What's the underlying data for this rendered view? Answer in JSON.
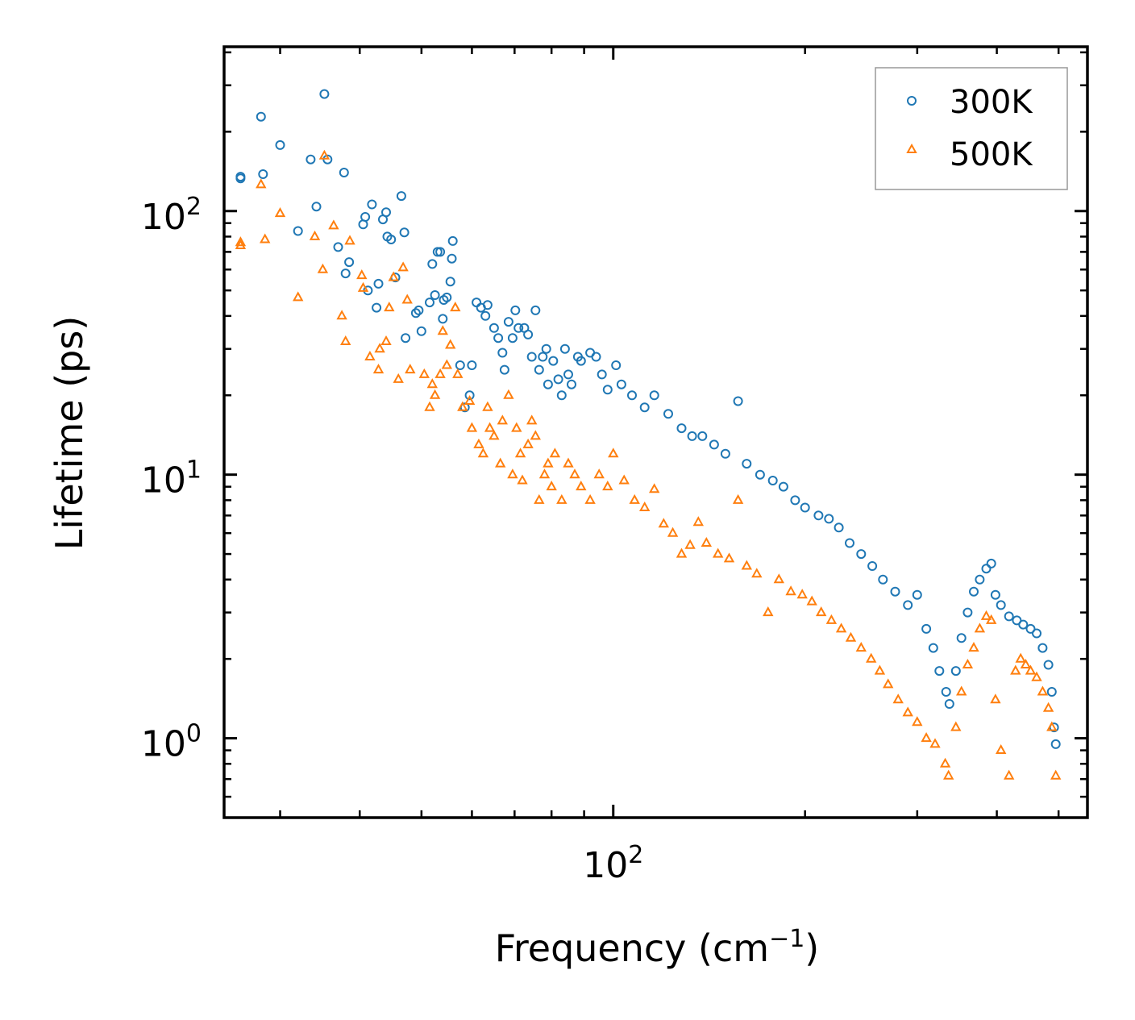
{
  "chart_data": {
    "type": "scatter",
    "xscale": "log",
    "yscale": "log",
    "xlabel": "Frequency (cm",
    "xlabel_sup": "−1",
    "xlabel_end": ")",
    "ylabel": "Lifetime (ps)",
    "xlim": [
      24.5,
      555
    ],
    "ylim": [
      0.5,
      420
    ],
    "xticks": [
      {
        "base": "10",
        "exp": "2",
        "value": 100
      }
    ],
    "yticks": [
      {
        "base": "10",
        "exp": "0",
        "value": 1
      },
      {
        "base": "10",
        "exp": "1",
        "value": 10
      },
      {
        "base": "10",
        "exp": "2",
        "value": 100
      }
    ],
    "legend": {
      "position": "upper-right"
    },
    "series": [
      {
        "name": "300K",
        "marker": "circle",
        "color": "#1f77b4",
        "points": [
          [
            26,
            133
          ],
          [
            26,
            135
          ],
          [
            28,
            228
          ],
          [
            28.2,
            138
          ],
          [
            30,
            178
          ],
          [
            32,
            84
          ],
          [
            33.5,
            157
          ],
          [
            34.2,
            104
          ],
          [
            35.2,
            278
          ],
          [
            35.6,
            157
          ],
          [
            37,
            73
          ],
          [
            37.8,
            140
          ],
          [
            38,
            58
          ],
          [
            38.5,
            64
          ],
          [
            40.5,
            89
          ],
          [
            40.8,
            95
          ],
          [
            41.2,
            50
          ],
          [
            41.8,
            106
          ],
          [
            42.5,
            43
          ],
          [
            42.8,
            53
          ],
          [
            43.5,
            93
          ],
          [
            44,
            99
          ],
          [
            44.2,
            80
          ],
          [
            44.8,
            78
          ],
          [
            45.5,
            56
          ],
          [
            46.5,
            114
          ],
          [
            47,
            83
          ],
          [
            47.2,
            33
          ],
          [
            49,
            41
          ],
          [
            49.5,
            42
          ],
          [
            50,
            35
          ],
          [
            51.5,
            45
          ],
          [
            52,
            63
          ],
          [
            52.5,
            48
          ],
          [
            53,
            70
          ],
          [
            53.5,
            70
          ],
          [
            54,
            39
          ],
          [
            54.2,
            46
          ],
          [
            54.8,
            47
          ],
          [
            55.5,
            54
          ],
          [
            56,
            77
          ],
          [
            55.8,
            66
          ],
          [
            57.5,
            26
          ],
          [
            58.5,
            18
          ],
          [
            59.5,
            20
          ],
          [
            60,
            26
          ],
          [
            61,
            45
          ],
          [
            62,
            43
          ],
          [
            63,
            40
          ],
          [
            63.5,
            44
          ],
          [
            65,
            36
          ],
          [
            66,
            33
          ],
          [
            67,
            29
          ],
          [
            67.5,
            25
          ],
          [
            68.5,
            38
          ],
          [
            69.5,
            33
          ],
          [
            70.2,
            42
          ],
          [
            71,
            36
          ],
          [
            72.5,
            36
          ],
          [
            73.5,
            34
          ],
          [
            74.5,
            28
          ],
          [
            75.5,
            42
          ],
          [
            76.5,
            25
          ],
          [
            77.5,
            28
          ],
          [
            78.5,
            30
          ],
          [
            79,
            22
          ],
          [
            80.5,
            27
          ],
          [
            82,
            23
          ],
          [
            83,
            20
          ],
          [
            84,
            30
          ],
          [
            85,
            24
          ],
          [
            86,
            22
          ],
          [
            88,
            28
          ],
          [
            89,
            27
          ],
          [
            92,
            29
          ],
          [
            94,
            28
          ],
          [
            96,
            24
          ],
          [
            98,
            21
          ],
          [
            101,
            26
          ],
          [
            103,
            22
          ],
          [
            107,
            20
          ],
          [
            112,
            18
          ],
          [
            116,
            20
          ],
          [
            122,
            17
          ],
          [
            128,
            15
          ],
          [
            133,
            14
          ],
          [
            138,
            14
          ],
          [
            144,
            13
          ],
          [
            150,
            12
          ],
          [
            157,
            19
          ],
          [
            162,
            11
          ],
          [
            170,
            10
          ],
          [
            178,
            9.5
          ],
          [
            185,
            9
          ],
          [
            193,
            8
          ],
          [
            200,
            7.5
          ],
          [
            210,
            7
          ],
          [
            218,
            6.8
          ],
          [
            226,
            6.3
          ],
          [
            235,
            5.5
          ],
          [
            245,
            5
          ],
          [
            255,
            4.5
          ],
          [
            265,
            4
          ],
          [
            277,
            3.6
          ],
          [
            290,
            3.2
          ],
          [
            300,
            3.5
          ],
          [
            310,
            2.6
          ],
          [
            318,
            2.2
          ],
          [
            325,
            1.8
          ],
          [
            333,
            1.5
          ],
          [
            337,
            1.35
          ],
          [
            345,
            1.8
          ],
          [
            352,
            2.4
          ],
          [
            360,
            3
          ],
          [
            368,
            3.6
          ],
          [
            376,
            4
          ],
          [
            385,
            4.4
          ],
          [
            392,
            4.6
          ],
          [
            398,
            3.5
          ],
          [
            406,
            3.2
          ],
          [
            418,
            2.9
          ],
          [
            430,
            2.8
          ],
          [
            440,
            2.7
          ],
          [
            452,
            2.6
          ],
          [
            462,
            2.5
          ],
          [
            472,
            2.2
          ],
          [
            482,
            1.9
          ],
          [
            488,
            1.5
          ],
          [
            492,
            1.1
          ],
          [
            495,
            0.95
          ]
        ]
      },
      {
        "name": "500K",
        "marker": "triangle",
        "color": "#ff7f0e",
        "points": [
          [
            26,
            74
          ],
          [
            26,
            76
          ],
          [
            28,
            126
          ],
          [
            28.4,
            78
          ],
          [
            30,
            98
          ],
          [
            32,
            47
          ],
          [
            34,
            80
          ],
          [
            35,
            60
          ],
          [
            35.2,
            162
          ],
          [
            36.4,
            88
          ],
          [
            37.5,
            40
          ],
          [
            38,
            32
          ],
          [
            38.6,
            77
          ],
          [
            40.3,
            57
          ],
          [
            40.5,
            51
          ],
          [
            41.5,
            28
          ],
          [
            42.8,
            25
          ],
          [
            43,
            30
          ],
          [
            44,
            32
          ],
          [
            44.5,
            43
          ],
          [
            45.2,
            56
          ],
          [
            46,
            23
          ],
          [
            46.8,
            61
          ],
          [
            47.5,
            46
          ],
          [
            48,
            25
          ],
          [
            50.5,
            24
          ],
          [
            51.5,
            18
          ],
          [
            52,
            22
          ],
          [
            52.5,
            20
          ],
          [
            53.5,
            24
          ],
          [
            54,
            35
          ],
          [
            54.8,
            26
          ],
          [
            55.5,
            31
          ],
          [
            56.5,
            43
          ],
          [
            57,
            24
          ],
          [
            58,
            18
          ],
          [
            59.5,
            19
          ],
          [
            60,
            15
          ],
          [
            61.5,
            13
          ],
          [
            62.5,
            12
          ],
          [
            63.5,
            18
          ],
          [
            64,
            15
          ],
          [
            65,
            14
          ],
          [
            66.5,
            11
          ],
          [
            67,
            16
          ],
          [
            68.5,
            20
          ],
          [
            69.5,
            10
          ],
          [
            70.5,
            15
          ],
          [
            71.5,
            12
          ],
          [
            72,
            9.5
          ],
          [
            73.5,
            13
          ],
          [
            74.5,
            16
          ],
          [
            75.5,
            14
          ],
          [
            76.5,
            8
          ],
          [
            78,
            10
          ],
          [
            79,
            11
          ],
          [
            80,
            9
          ],
          [
            81,
            12
          ],
          [
            83,
            8
          ],
          [
            85,
            11
          ],
          [
            87,
            10
          ],
          [
            89,
            9
          ],
          [
            92,
            8
          ],
          [
            95,
            10
          ],
          [
            98,
            9
          ],
          [
            100,
            12
          ],
          [
            104,
            9.5
          ],
          [
            108,
            8
          ],
          [
            112,
            7.5
          ],
          [
            116,
            8.8
          ],
          [
            120,
            6.5
          ],
          [
            124,
            6
          ],
          [
            128,
            5
          ],
          [
            132,
            5.4
          ],
          [
            136,
            6.6
          ],
          [
            140,
            5.5
          ],
          [
            146,
            5
          ],
          [
            152,
            4.8
          ],
          [
            157,
            8
          ],
          [
            162,
            4.5
          ],
          [
            168,
            4.2
          ],
          [
            175,
            3
          ],
          [
            182,
            4
          ],
          [
            190,
            3.6
          ],
          [
            198,
            3.5
          ],
          [
            205,
            3.3
          ],
          [
            212,
            3
          ],
          [
            220,
            2.8
          ],
          [
            228,
            2.6
          ],
          [
            236,
            2.4
          ],
          [
            245,
            2.2
          ],
          [
            254,
            2
          ],
          [
            262,
            1.8
          ],
          [
            270,
            1.6
          ],
          [
            280,
            1.4
          ],
          [
            290,
            1.25
          ],
          [
            300,
            1.15
          ],
          [
            310,
            1
          ],
          [
            320,
            0.95
          ],
          [
            332,
            0.8
          ],
          [
            336,
            0.72
          ],
          [
            345,
            1.1
          ],
          [
            352,
            1.5
          ],
          [
            360,
            1.9
          ],
          [
            368,
            2.2
          ],
          [
            376,
            2.6
          ],
          [
            385,
            2.9
          ],
          [
            392,
            2.8
          ],
          [
            398,
            1.4
          ],
          [
            406,
            0.9
          ],
          [
            418,
            0.72
          ],
          [
            428,
            1.8
          ],
          [
            436,
            2
          ],
          [
            444,
            1.9
          ],
          [
            452,
            1.8
          ],
          [
            462,
            1.7
          ],
          [
            472,
            1.5
          ],
          [
            482,
            1.3
          ],
          [
            488,
            1.1
          ],
          [
            495,
            0.72
          ]
        ]
      }
    ]
  }
}
